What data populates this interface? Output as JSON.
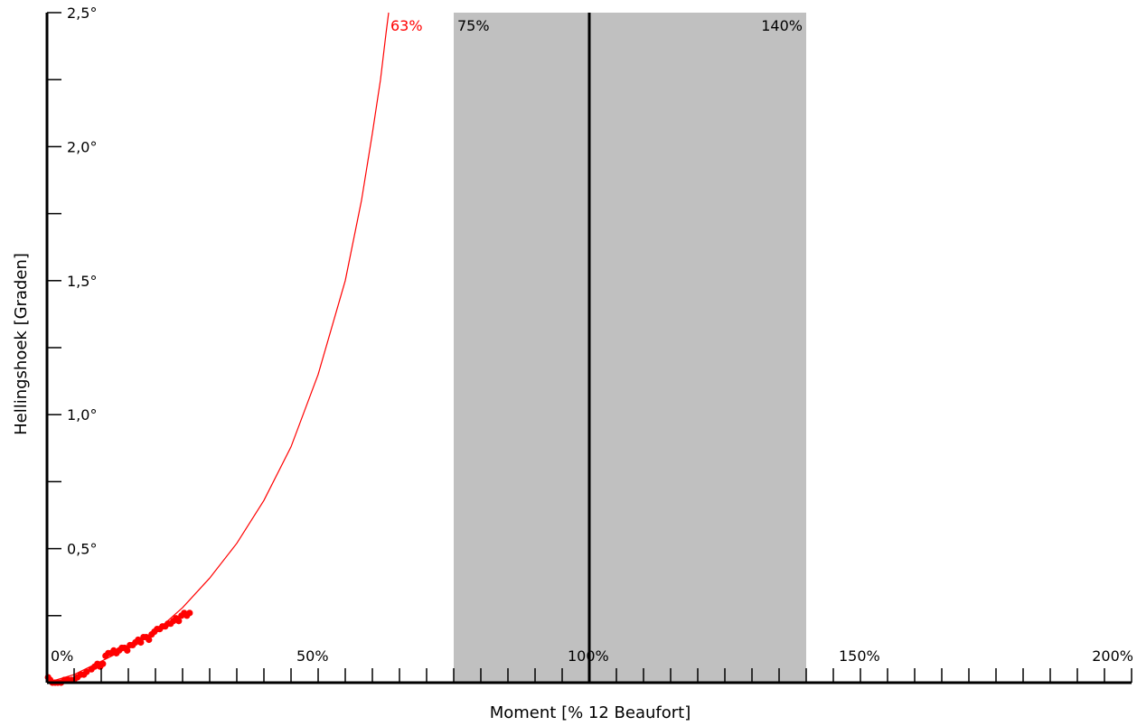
{
  "chart_data": {
    "type": "scatter",
    "xlabel": "Moment [% 12 Beaufort]",
    "ylabel": "Hellingshoek [Graden]",
    "xlim": [
      0,
      200
    ],
    "ylim": [
      0,
      2.5
    ],
    "x_ticks": [
      0,
      5,
      10,
      15,
      20,
      25,
      30,
      35,
      40,
      45,
      50,
      55,
      60,
      65,
      70,
      75,
      80,
      85,
      90,
      95,
      100,
      105,
      110,
      115,
      120,
      125,
      130,
      135,
      140,
      145,
      150,
      155,
      160,
      165,
      170,
      175,
      180,
      185,
      190,
      195,
      200
    ],
    "x_tick_labels": [
      {
        "value": 0,
        "text": "0%"
      },
      {
        "value": 50,
        "text": "50%"
      },
      {
        "value": 100,
        "text": "100%"
      },
      {
        "value": 150,
        "text": "150%"
      },
      {
        "value": 200,
        "text": "200%"
      }
    ],
    "y_ticks": [
      0.25,
      0.5,
      0.75,
      1.0,
      1.25,
      1.5,
      1.75,
      2.0,
      2.25,
      2.5
    ],
    "y_tick_labels": [
      {
        "value": 0.5,
        "text": "0,5°"
      },
      {
        "value": 1.0,
        "text": "1,0°"
      },
      {
        "value": 1.5,
        "text": "1,5°"
      },
      {
        "value": 2.0,
        "text": "2,0°"
      },
      {
        "value": 2.5,
        "text": "2,5°"
      }
    ],
    "band": {
      "from": 75,
      "to": 140,
      "color": "#c0c0c0",
      "label_from": "75%",
      "label_to": "140%"
    },
    "reference_line": {
      "x": 100,
      "color": "#000000"
    },
    "curve": {
      "color": "#ff0000",
      "asymptote_label": "63%",
      "x": [
        0,
        5,
        10,
        15,
        20,
        25,
        30,
        35,
        40,
        45,
        50,
        55,
        58,
        60,
        61.5,
        62.5,
        63
      ],
      "y": [
        0.0,
        0.03,
        0.08,
        0.13,
        0.19,
        0.28,
        0.39,
        0.52,
        0.68,
        0.88,
        1.15,
        1.5,
        1.8,
        2.05,
        2.25,
        2.42,
        2.5
      ]
    },
    "series": [
      {
        "color": "#ff0000",
        "x": [
          0.2,
          0.6,
          1.0,
          1.5,
          2.0,
          2.6,
          3.2,
          3.9,
          4.5,
          5.0,
          5.6,
          6.2,
          6.8,
          7.3,
          8.2,
          8.8,
          9.3,
          9.8,
          10.3,
          10.8,
          11.3,
          11.8,
          12.3,
          12.8,
          13.3,
          13.8,
          14.3,
          14.8,
          15.3,
          15.8,
          16.3,
          16.8,
          17.3,
          17.8,
          18.3,
          18.8,
          19.3,
          19.8,
          20.3,
          20.8,
          21.3,
          21.8,
          22.3,
          22.8,
          23.3,
          23.8,
          24.3,
          24.8,
          25.3,
          25.8,
          26.3
        ],
        "y": [
          0.02,
          0.01,
          0.0,
          0.0,
          0.0,
          0.0,
          0.01,
          0.01,
          0.01,
          0.01,
          0.02,
          0.03,
          0.03,
          0.04,
          0.05,
          0.06,
          0.07,
          0.06,
          0.07,
          0.1,
          0.11,
          0.11,
          0.12,
          0.11,
          0.12,
          0.13,
          0.13,
          0.12,
          0.14,
          0.14,
          0.15,
          0.16,
          0.15,
          0.17,
          0.17,
          0.16,
          0.18,
          0.19,
          0.2,
          0.2,
          0.21,
          0.21,
          0.22,
          0.22,
          0.23,
          0.24,
          0.23,
          0.25,
          0.26,
          0.25,
          0.26
        ]
      }
    ]
  }
}
